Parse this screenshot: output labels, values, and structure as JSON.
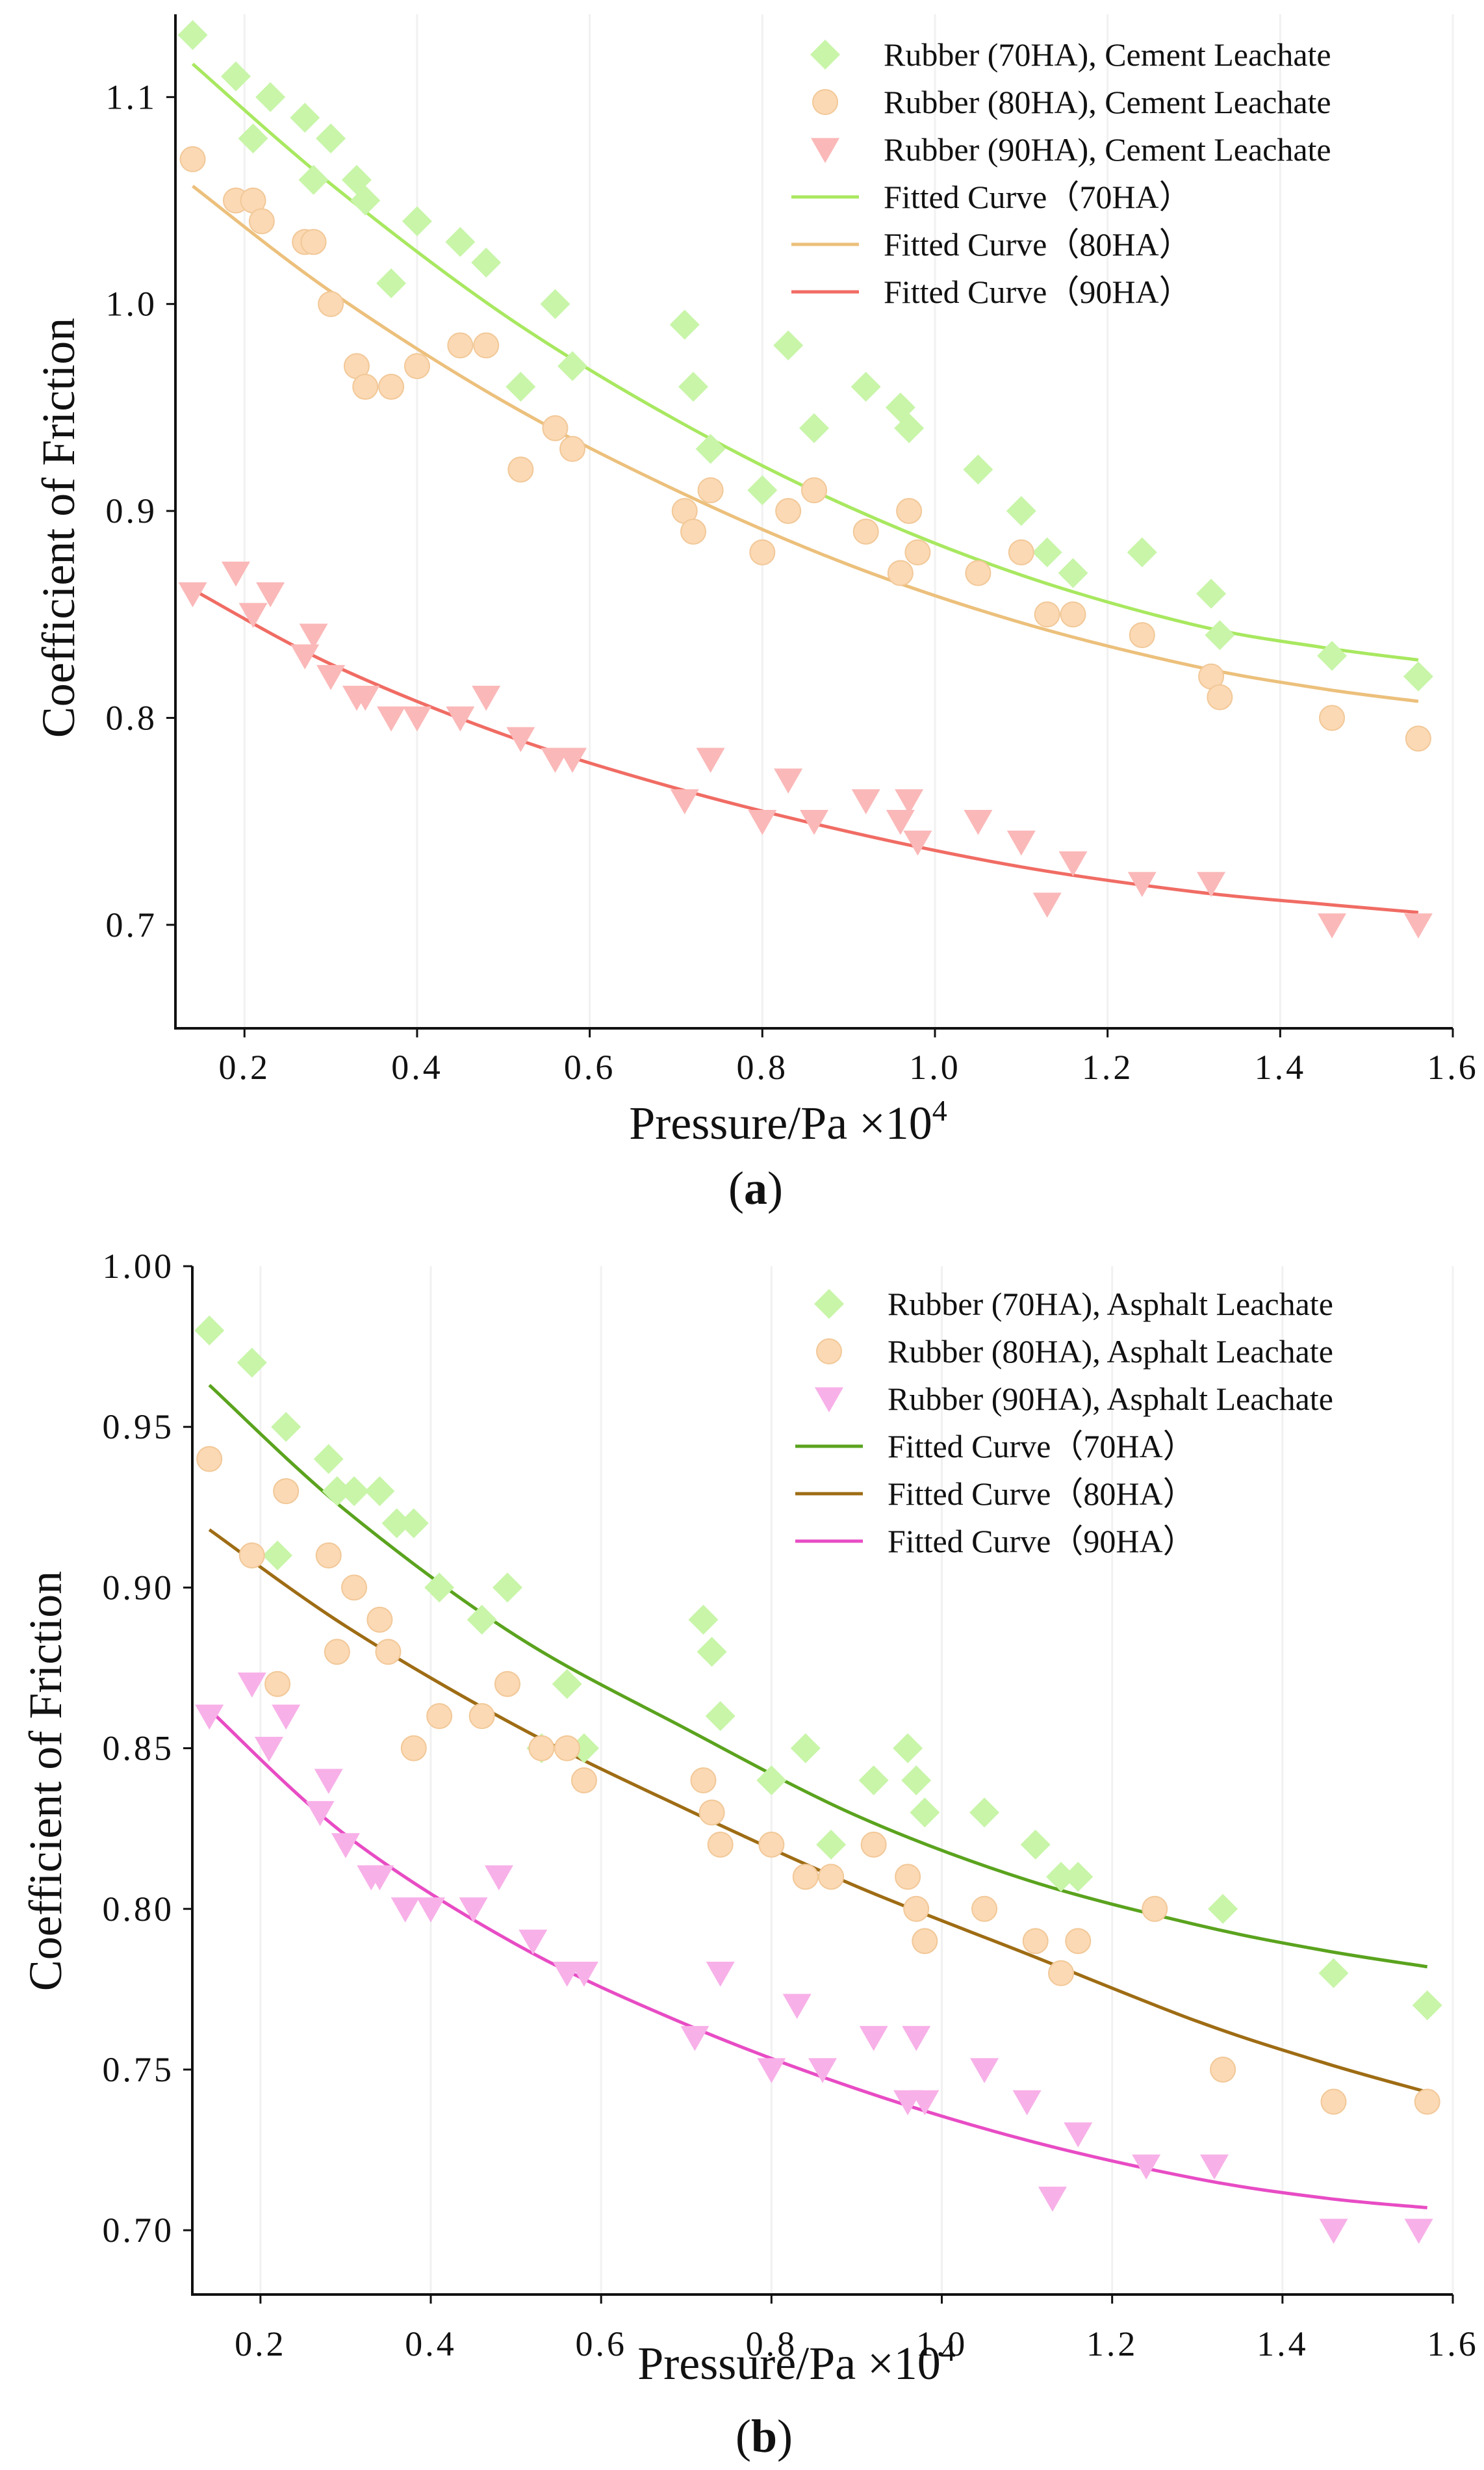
{
  "chart_data": [
    {
      "type": "scatter",
      "panel_label": "(a)",
      "panel_letter": "a",
      "xlabel": "Pressure/Pa ×10",
      "xlabel_exp": "4",
      "ylabel": "Coefficient of Friction",
      "xlim": [
        0.12,
        1.6
      ],
      "ylim": [
        0.65,
        1.14
      ],
      "x_ticks": [
        0.2,
        0.4,
        0.6,
        0.8,
        1.0,
        1.2,
        1.4,
        1.6
      ],
      "x_tick_labels": [
        "0.2",
        "0.4",
        "0.6",
        "0.8",
        "1.0",
        "1.2",
        "1.4",
        "1.6"
      ],
      "y_ticks": [
        0.7,
        0.8,
        0.9,
        1.0,
        1.1
      ],
      "y_tick_labels": [
        "0.7",
        "0.8",
        "0.9",
        "1.0",
        "1.1"
      ],
      "legend_position": "top-right",
      "series": [
        {
          "name": "Rubber (70HA), Cement Leachate",
          "marker": "diamond",
          "color": "#c8f5a8",
          "x": [
            0.14,
            0.19,
            0.21,
            0.23,
            0.27,
            0.28,
            0.3,
            0.33,
            0.34,
            0.37,
            0.4,
            0.45,
            0.48,
            0.52,
            0.56,
            0.58,
            0.71,
            0.72,
            0.74,
            0.8,
            0.83,
            0.86,
            0.92,
            0.96,
            0.97,
            1.05,
            1.1,
            1.13,
            1.16,
            1.24,
            1.32,
            1.33,
            1.46,
            1.56
          ],
          "y": [
            1.13,
            1.11,
            1.08,
            1.1,
            1.09,
            1.06,
            1.08,
            1.06,
            1.05,
            1.01,
            1.04,
            1.03,
            1.02,
            0.96,
            1.0,
            0.97,
            0.99,
            0.96,
            0.93,
            0.91,
            0.98,
            0.94,
            0.96,
            0.95,
            0.94,
            0.92,
            0.9,
            0.88,
            0.87,
            0.88,
            0.86,
            0.84,
            0.83,
            0.82
          ]
        },
        {
          "name": "Rubber (80HA), Cement Leachate",
          "marker": "circle",
          "color": "#fbd9b4",
          "x": [
            0.14,
            0.19,
            0.21,
            0.22,
            0.27,
            0.28,
            0.3,
            0.33,
            0.34,
            0.37,
            0.4,
            0.45,
            0.48,
            0.52,
            0.56,
            0.58,
            0.71,
            0.72,
            0.74,
            0.8,
            0.83,
            0.86,
            0.92,
            0.96,
            0.97,
            0.98,
            1.05,
            1.1,
            1.13,
            1.16,
            1.24,
            1.32,
            1.33,
            1.46,
            1.56
          ],
          "y": [
            1.07,
            1.05,
            1.05,
            1.04,
            1.03,
            1.03,
            1.0,
            0.97,
            0.96,
            0.96,
            0.97,
            0.98,
            0.98,
            0.92,
            0.94,
            0.93,
            0.9,
            0.89,
            0.91,
            0.88,
            0.9,
            0.91,
            0.89,
            0.87,
            0.9,
            0.88,
            0.87,
            0.88,
            0.85,
            0.85,
            0.84,
            0.82,
            0.81,
            0.8,
            0.79
          ]
        },
        {
          "name": "Rubber (90HA), Cement Leachate",
          "marker": "triangle-down",
          "color": "#fbb8b8",
          "x": [
            0.14,
            0.19,
            0.21,
            0.23,
            0.27,
            0.28,
            0.3,
            0.33,
            0.34,
            0.37,
            0.4,
            0.45,
            0.48,
            0.52,
            0.56,
            0.58,
            0.71,
            0.74,
            0.8,
            0.83,
            0.86,
            0.92,
            0.96,
            0.97,
            0.98,
            1.05,
            1.1,
            1.13,
            1.16,
            1.24,
            1.32,
            1.46,
            1.56
          ],
          "y": [
            0.86,
            0.87,
            0.85,
            0.86,
            0.83,
            0.84,
            0.82,
            0.81,
            0.81,
            0.8,
            0.8,
            0.8,
            0.81,
            0.79,
            0.78,
            0.78,
            0.76,
            0.78,
            0.75,
            0.77,
            0.75,
            0.76,
            0.75,
            0.76,
            0.74,
            0.75,
            0.74,
            0.71,
            0.73,
            0.72,
            0.72,
            0.7,
            0.7
          ]
        },
        {
          "name": "Fitted Curve（70HA）",
          "type": "line",
          "color": "#a8e860",
          "x": [
            0.14,
            0.3,
            0.5,
            0.7,
            0.9,
            1.1,
            1.3,
            1.45,
            1.56
          ],
          "y": [
            1.116,
            1.058,
            0.995,
            0.944,
            0.902,
            0.869,
            0.845,
            0.834,
            0.828
          ]
        },
        {
          "name": "Fitted Curve（80HA）",
          "type": "line",
          "color": "#ecc07c",
          "x": [
            0.14,
            0.3,
            0.5,
            0.7,
            0.9,
            1.1,
            1.3,
            1.45,
            1.56
          ],
          "y": [
            1.057,
            1.006,
            0.953,
            0.91,
            0.874,
            0.846,
            0.825,
            0.814,
            0.808
          ]
        },
        {
          "name": "Fitted Curve（90HA）",
          "type": "line",
          "color": "#f06c64",
          "x": [
            0.14,
            0.3,
            0.5,
            0.7,
            0.9,
            1.1,
            1.3,
            1.45,
            1.56
          ],
          "y": [
            0.862,
            0.826,
            0.792,
            0.766,
            0.745,
            0.728,
            0.716,
            0.71,
            0.706
          ]
        }
      ]
    },
    {
      "type": "scatter",
      "panel_label": "(b)",
      "panel_letter": "b",
      "xlabel": "Pressure/Pa ×10",
      "xlabel_exp": "4",
      "ylabel": "Coefficient of Friction",
      "xlim": [
        0.12,
        1.6
      ],
      "ylim": [
        0.68,
        1.0
      ],
      "x_ticks": [
        0.2,
        0.4,
        0.6,
        0.8,
        1.0,
        1.2,
        1.4,
        1.6
      ],
      "x_tick_labels": [
        "0.2",
        "0.4",
        "0.6",
        "0.8",
        "1.0",
        "1.2",
        "1.4",
        "1.6"
      ],
      "y_ticks": [
        0.7,
        0.75,
        0.8,
        0.85,
        0.9,
        0.95,
        1.0
      ],
      "y_tick_labels": [
        "0.70",
        "0.75",
        "0.80",
        "0.85",
        "0.90",
        "0.95",
        "1.00"
      ],
      "legend_position": "top-right",
      "series": [
        {
          "name": "Rubber (70HA), Asphalt Leachate",
          "marker": "diamond",
          "color": "#c8f5a8",
          "x": [
            0.14,
            0.19,
            0.22,
            0.23,
            0.28,
            0.29,
            0.31,
            0.34,
            0.36,
            0.38,
            0.41,
            0.46,
            0.49,
            0.53,
            0.56,
            0.58,
            0.72,
            0.73,
            0.74,
            0.8,
            0.84,
            0.87,
            0.92,
            0.96,
            0.97,
            0.98,
            1.05,
            1.11,
            1.14,
            1.16,
            1.33,
            1.46,
            1.57
          ],
          "y": [
            0.98,
            0.97,
            0.91,
            0.95,
            0.94,
            0.93,
            0.93,
            0.93,
            0.92,
            0.92,
            0.9,
            0.89,
            0.9,
            0.85,
            0.87,
            0.85,
            0.89,
            0.88,
            0.86,
            0.84,
            0.85,
            0.82,
            0.84,
            0.85,
            0.84,
            0.83,
            0.83,
            0.82,
            0.81,
            0.81,
            0.8,
            0.78,
            0.77
          ]
        },
        {
          "name": "Rubber (80HA), Asphalt Leachate",
          "marker": "circle",
          "color": "#fbd9b4",
          "x": [
            0.14,
            0.19,
            0.22,
            0.23,
            0.28,
            0.29,
            0.31,
            0.34,
            0.35,
            0.38,
            0.41,
            0.46,
            0.49,
            0.53,
            0.56,
            0.58,
            0.72,
            0.73,
            0.74,
            0.8,
            0.84,
            0.87,
            0.92,
            0.96,
            0.97,
            0.98,
            1.05,
            1.11,
            1.14,
            1.16,
            1.25,
            1.33,
            1.46,
            1.57
          ],
          "y": [
            0.94,
            0.91,
            0.87,
            0.93,
            0.91,
            0.88,
            0.9,
            0.89,
            0.88,
            0.85,
            0.86,
            0.86,
            0.87,
            0.85,
            0.85,
            0.84,
            0.84,
            0.83,
            0.82,
            0.82,
            0.81,
            0.81,
            0.82,
            0.81,
            0.8,
            0.79,
            0.8,
            0.79,
            0.78,
            0.79,
            0.8,
            0.75,
            0.74,
            0.74
          ]
        },
        {
          "name": "Rubber (90HA), Asphalt Leachate",
          "marker": "triangle-down",
          "color": "#f8b0e8",
          "x": [
            0.14,
            0.19,
            0.21,
            0.23,
            0.27,
            0.28,
            0.3,
            0.33,
            0.34,
            0.37,
            0.4,
            0.45,
            0.48,
            0.52,
            0.56,
            0.58,
            0.71,
            0.74,
            0.8,
            0.83,
            0.86,
            0.92,
            0.96,
            0.97,
            0.98,
            1.05,
            1.1,
            1.13,
            1.16,
            1.24,
            1.32,
            1.46,
            1.56
          ],
          "y": [
            0.86,
            0.87,
            0.85,
            0.86,
            0.83,
            0.84,
            0.82,
            0.81,
            0.81,
            0.8,
            0.8,
            0.8,
            0.81,
            0.79,
            0.78,
            0.78,
            0.76,
            0.78,
            0.75,
            0.77,
            0.75,
            0.76,
            0.74,
            0.76,
            0.74,
            0.75,
            0.74,
            0.71,
            0.73,
            0.72,
            0.72,
            0.7,
            0.7
          ]
        },
        {
          "name": "Fitted Curve（70HA）",
          "type": "line",
          "color": "#5aa31e",
          "x": [
            0.14,
            0.3,
            0.5,
            0.7,
            0.9,
            1.1,
            1.3,
            1.45,
            1.57
          ],
          "y": [
            0.963,
            0.924,
            0.885,
            0.856,
            0.829,
            0.809,
            0.795,
            0.787,
            0.782
          ]
        },
        {
          "name": "Fitted Curve（80HA）",
          "type": "line",
          "color": "#9e6c14",
          "x": [
            0.14,
            0.3,
            0.5,
            0.7,
            0.9,
            1.1,
            1.3,
            1.45,
            1.57
          ],
          "y": [
            0.918,
            0.888,
            0.857,
            0.831,
            0.807,
            0.786,
            0.765,
            0.752,
            0.743
          ]
        },
        {
          "name": "Fitted Curve（90HA）",
          "type": "line",
          "color": "#e84cc4",
          "x": [
            0.14,
            0.3,
            0.5,
            0.7,
            0.9,
            1.1,
            1.3,
            1.45,
            1.57
          ],
          "y": [
            0.862,
            0.823,
            0.789,
            0.764,
            0.744,
            0.728,
            0.716,
            0.71,
            0.707
          ]
        }
      ]
    }
  ]
}
